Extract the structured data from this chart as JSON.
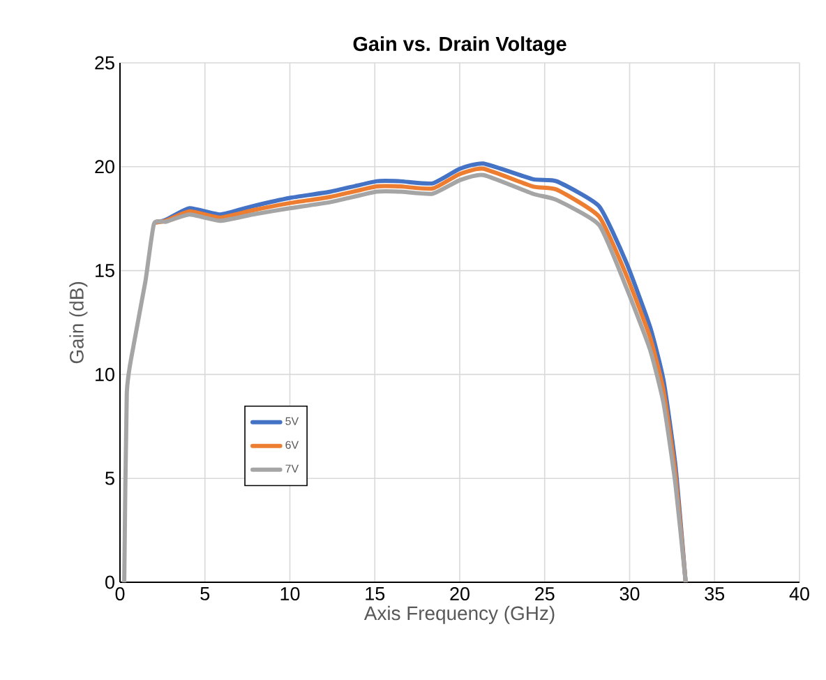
{
  "chart_data": {
    "type": "line",
    "title": "Gain vs. Drain Voltage",
    "xlabel": "Axis Frequency (GHz)",
    "ylabel": "Gain (dB)",
    "x": [
      0.25,
      0.4,
      0.8,
      1.5,
      2.0,
      2.7,
      4.1,
      5.9,
      7.8,
      10,
      12.4,
      15.1,
      16.5,
      18.4,
      20,
      21.4,
      24.3,
      25.7,
      28.2,
      29.8,
      31.2,
      32,
      32.7,
      33.3
    ],
    "series": [
      {
        "name": "5V",
        "color": "#4472c4",
        "values": [
          null,
          null,
          null,
          null,
          17.3,
          17.45,
          18.0,
          17.7,
          18.1,
          18.5,
          18.8,
          19.3,
          19.3,
          19.2,
          19.9,
          20.15,
          19.4,
          19.3,
          18.1,
          15.4,
          12.3,
          9.7,
          5.6,
          0
        ]
      },
      {
        "name": "6V",
        "color": "#ed7d31",
        "values": [
          null,
          null,
          null,
          null,
          17.3,
          17.4,
          17.85,
          17.55,
          17.9,
          18.25,
          18.55,
          19.05,
          19.05,
          18.95,
          19.65,
          19.9,
          19.05,
          18.9,
          17.6,
          14.8,
          11.8,
          9.2,
          5.2,
          0
        ]
      },
      {
        "name": "7V",
        "color": "#a5a5a5",
        "values": [
          0,
          9.1,
          11.4,
          14.5,
          17.25,
          17.35,
          17.7,
          17.4,
          17.7,
          18.0,
          18.3,
          18.8,
          18.8,
          18.7,
          19.35,
          19.6,
          18.7,
          18.4,
          17.2,
          14.2,
          11.2,
          8.6,
          4.7,
          0
        ]
      }
    ],
    "xlim": [
      0,
      40
    ],
    "xticks": [
      0,
      5,
      10,
      15,
      20,
      25,
      30,
      35,
      40
    ],
    "ylim": [
      0,
      25
    ],
    "yticks": [
      0,
      5,
      10,
      15,
      20,
      25
    ],
    "grid": true,
    "legend": "left",
    "marker": "none",
    "line_style": "solid"
  }
}
